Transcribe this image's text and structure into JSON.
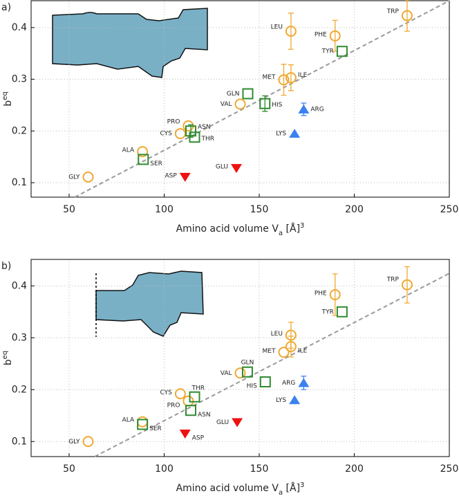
{
  "charts": [
    {
      "type": "scatter",
      "panel_label": "a)",
      "xlabel": [
        "Amino acid volume V",
        "a",
        " [Å]",
        "3"
      ],
      "ylabel": [
        "b",
        "eq"
      ],
      "xlim": [
        30,
        250
      ],
      "ylim": [
        0.072,
        0.452
      ],
      "xticks": [
        50,
        100,
        150,
        200,
        250
      ],
      "yticks": [
        0.1,
        0.2,
        0.3,
        0.4
      ],
      "grid": true,
      "fit": {
        "x": [
          53,
          250
        ],
        "values": [
          0.072,
          0.452
        ],
        "color": "#999999"
      },
      "series": [
        {
          "marker": "circle",
          "color": "#f0a830",
          "point_labels": [
            "GLY",
            "ALA",
            "CYS",
            "PRO",
            "VAL",
            "MET",
            "ILE",
            "LEU",
            "PHE",
            "TRP"
          ],
          "x": [
            60,
            88.6,
            108.5,
            112.7,
            140,
            162.9,
            166.7,
            166.7,
            189.9,
            227.8
          ],
          "values": [
            0.111,
            0.16,
            0.195,
            0.21,
            0.252,
            0.299,
            0.303,
            0.393,
            0.384,
            0.423
          ],
          "errors": [
            null,
            null,
            null,
            null,
            null,
            0.03,
            0.025,
            0.035,
            0.03,
            0.03
          ]
        },
        {
          "marker": "square",
          "color": "#2e8b2e",
          "point_labels": [
            "SER",
            "ASN",
            "THR",
            "GLN",
            "HIS",
            "TYR"
          ],
          "x": [
            89,
            114,
            116,
            144,
            153,
            193.6
          ],
          "values": [
            0.145,
            0.2,
            0.188,
            0.272,
            0.253,
            0.354
          ],
          "errors": [
            null,
            0.012,
            null,
            null,
            0.015,
            null
          ]
        },
        {
          "marker": "triangle-up",
          "color": "#3b82f0",
          "point_labels": [
            "LYS",
            "ARG"
          ],
          "x": [
            168.6,
            173.4
          ],
          "values": [
            0.195,
            0.242
          ],
          "errors": [
            null,
            0.012
          ]
        },
        {
          "marker": "triangle-down",
          "color": "#ee1111",
          "point_labels": [
            "ASP",
            "GLU"
          ],
          "x": [
            111,
            138
          ],
          "values": [
            0.111,
            0.128
          ],
          "errors": [
            null,
            null
          ]
        }
      ]
    },
    {
      "type": "scatter",
      "panel_label": "b)",
      "xlabel": [
        "Amino acid volume V",
        "a",
        " [Å]",
        "3"
      ],
      "ylabel": [
        "b",
        "eq"
      ],
      "xlim": [
        30,
        250
      ],
      "ylim": [
        0.071,
        0.451
      ],
      "xticks": [
        50,
        100,
        150,
        200,
        250
      ],
      "yticks": [
        0.1,
        0.2,
        0.3,
        0.4
      ],
      "grid": true,
      "fit": {
        "x": [
          63.5,
          250
        ],
        "values": [
          0.071,
          0.424
        ],
        "color": "#999999"
      },
      "series": [
        {
          "marker": "circle",
          "color": "#f0a830",
          "point_labels": [
            "GLY",
            "ALA",
            "CYS",
            "PRO",
            "VAL",
            "MET",
            "ILE",
            "LEU",
            "PHE",
            "TRP"
          ],
          "x": [
            60,
            88.6,
            108.5,
            112.7,
            140,
            162.9,
            166.7,
            166.7,
            189.9,
            227.8
          ],
          "values": [
            0.1,
            0.138,
            0.192,
            0.178,
            0.232,
            0.272,
            0.283,
            0.305,
            0.383,
            0.402
          ],
          "errors": [
            null,
            null,
            null,
            null,
            null,
            null,
            0.02,
            0.025,
            0.04,
            0.035
          ]
        },
        {
          "marker": "square",
          "color": "#2e8b2e",
          "point_labels": [
            "SER",
            "ASN",
            "THR",
            "GLN",
            "HIS",
            "TYR"
          ],
          "x": [
            88.6,
            114,
            116,
            143.8,
            153.2,
            193.6
          ],
          "values": [
            0.133,
            0.16,
            0.186,
            0.234,
            0.215,
            0.35
          ],
          "errors": [
            null,
            null,
            null,
            null,
            null,
            null
          ]
        },
        {
          "marker": "triangle-up",
          "color": "#3b82f0",
          "point_labels": [
            "ARG",
            "LYS"
          ],
          "x": [
            173.4,
            168.6
          ],
          "values": [
            0.213,
            0.18
          ],
          "errors": [
            0.013,
            null
          ]
        },
        {
          "marker": "triangle-down",
          "color": "#ee1111",
          "point_labels": [
            "GLU",
            "ASP"
          ],
          "x": [
            138.4,
            111
          ],
          "values": [
            0.137,
            0.115
          ],
          "errors": [
            null,
            null
          ]
        }
      ]
    }
  ]
}
